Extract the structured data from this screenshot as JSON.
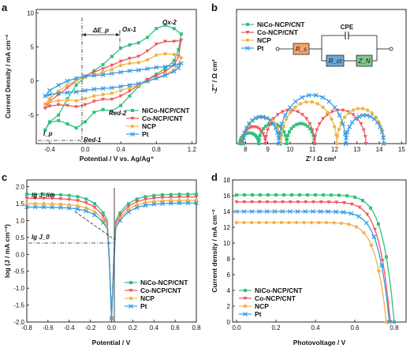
{
  "panels": [
    {
      "label": "a"
    },
    {
      "label": "b"
    },
    {
      "label": "c"
    },
    {
      "label": "d"
    }
  ],
  "colors": {
    "NiCo-NCP/CNT": "#2ec27e",
    "Co-NCP/CNT": "#f0555a",
    "NCP": "#f2b347",
    "Pt": "#2f9be3"
  },
  "legend": [
    "NiCo-NCP/CNT",
    "Co-NCP/CNT",
    "NCP",
    "Pt"
  ],
  "chart_data": [
    {
      "type": "line",
      "panel": "a",
      "xlabel": "Potential / V vs. Ag/Ag⁺",
      "ylabel": "Current Density / mA cm⁻²",
      "xlim": [
        -0.55,
        1.25
      ],
      "ylim": [
        -9.2,
        10.5
      ],
      "xticks": [
        "-0.4",
        "0.0",
        "0.4",
        "0.8",
        "1.2"
      ],
      "yticks": [
        "-5",
        "0",
        "5",
        "10"
      ],
      "annotations": [
        "Ox-1",
        "Ox-2",
        "Red-1",
        "Red-2",
        "ΔE_p",
        "I_p"
      ],
      "legend_position": "bottom-right",
      "series": [
        {
          "name": "NiCo-NCP/CNT",
          "forward": [
            [
              -0.45,
              -7.2
            ],
            [
              -0.4,
              -6.0
            ],
            [
              -0.3,
              -5.0
            ],
            [
              -0.2,
              -2.6
            ],
            [
              -0.1,
              -0.6
            ],
            [
              0.0,
              0.6
            ],
            [
              0.1,
              1.5
            ],
            [
              0.2,
              2.4
            ],
            [
              0.3,
              3.6
            ],
            [
              0.4,
              4.8
            ],
            [
              0.5,
              5.3
            ],
            [
              0.6,
              5.6
            ],
            [
              0.7,
              6.4
            ],
            [
              0.8,
              7.7
            ],
            [
              0.9,
              8.2
            ],
            [
              1.0,
              7.7
            ],
            [
              1.08,
              6.9
            ]
          ],
          "reverse": [
            [
              1.08,
              6.9
            ],
            [
              1.05,
              4.6
            ],
            [
              1.0,
              3.0
            ],
            [
              0.9,
              1.8
            ],
            [
              0.8,
              1.0
            ],
            [
              0.7,
              0.2
            ],
            [
              0.6,
              -0.8
            ],
            [
              0.5,
              -2.2
            ],
            [
              0.4,
              -3.6
            ],
            [
              0.3,
              -4.4
            ],
            [
              0.2,
              -4.2
            ],
            [
              0.1,
              -4.6
            ],
            [
              0.0,
              -6.0
            ],
            [
              -0.1,
              -6.9
            ],
            [
              -0.2,
              -6.3
            ],
            [
              -0.3,
              -5.8
            ],
            [
              -0.4,
              -6.1
            ],
            [
              -0.45,
              -7.2
            ]
          ]
        },
        {
          "name": "Co-NCP/CNT",
          "forward": [
            [
              -0.45,
              -4.0
            ],
            [
              -0.4,
              -3.0
            ],
            [
              -0.3,
              -2.0
            ],
            [
              -0.2,
              -1.0
            ],
            [
              -0.1,
              0.0
            ],
            [
              0.0,
              0.7
            ],
            [
              0.1,
              1.3
            ],
            [
              0.2,
              1.8
            ],
            [
              0.3,
              2.3
            ],
            [
              0.4,
              2.9
            ],
            [
              0.5,
              3.3
            ],
            [
              0.6,
              3.6
            ],
            [
              0.7,
              4.4
            ],
            [
              0.8,
              5.4
            ],
            [
              0.9,
              5.8
            ],
            [
              1.0,
              5.8
            ],
            [
              1.08,
              6.0
            ]
          ],
          "reverse": [
            [
              1.08,
              6.0
            ],
            [
              1.05,
              3.6
            ],
            [
              1.0,
              2.4
            ],
            [
              0.9,
              1.4
            ],
            [
              0.8,
              0.8
            ],
            [
              0.7,
              0.2
            ],
            [
              0.6,
              -0.6
            ],
            [
              0.5,
              -1.5
            ],
            [
              0.4,
              -2.2
            ],
            [
              0.3,
              -2.7
            ],
            [
              0.2,
              -2.7
            ],
            [
              0.1,
              -3.0
            ],
            [
              0.0,
              -3.5
            ],
            [
              -0.1,
              -3.8
            ],
            [
              -0.2,
              -3.6
            ],
            [
              -0.3,
              -3.5
            ],
            [
              -0.4,
              -3.7
            ],
            [
              -0.45,
              -4.0
            ]
          ]
        },
        {
          "name": "NCP",
          "forward": [
            [
              -0.45,
              -3.4
            ],
            [
              -0.4,
              -2.6
            ],
            [
              -0.3,
              -1.5
            ],
            [
              -0.2,
              -0.6
            ],
            [
              -0.1,
              0.1
            ],
            [
              0.0,
              0.6
            ],
            [
              0.1,
              0.9
            ],
            [
              0.2,
              1.3
            ],
            [
              0.3,
              1.7
            ],
            [
              0.4,
              2.3
            ],
            [
              0.5,
              2.6
            ],
            [
              0.6,
              2.7
            ],
            [
              0.7,
              3.1
            ],
            [
              0.8,
              3.8
            ],
            [
              0.9,
              4.0
            ],
            [
              1.0,
              3.9
            ],
            [
              1.08,
              3.4
            ]
          ],
          "reverse": [
            [
              1.08,
              3.4
            ],
            [
              1.05,
              2.4
            ],
            [
              1.0,
              1.6
            ],
            [
              0.9,
              1.0
            ],
            [
              0.8,
              0.4
            ],
            [
              0.7,
              -0.1
            ],
            [
              0.6,
              -0.6
            ],
            [
              0.5,
              -1.0
            ],
            [
              0.4,
              -1.4
            ],
            [
              0.3,
              -1.8
            ],
            [
              0.2,
              -2.0
            ],
            [
              0.1,
              -2.2
            ],
            [
              0.0,
              -2.6
            ],
            [
              -0.1,
              -2.9
            ],
            [
              -0.2,
              -2.8
            ],
            [
              -0.3,
              -2.9
            ],
            [
              -0.4,
              -3.1
            ],
            [
              -0.45,
              -3.4
            ]
          ]
        },
        {
          "name": "Pt",
          "forward": [
            [
              -0.45,
              -2.2
            ],
            [
              -0.4,
              -1.4
            ],
            [
              -0.3,
              -0.6
            ],
            [
              -0.2,
              0.0
            ],
            [
              -0.1,
              0.4
            ],
            [
              0.0,
              0.7
            ],
            [
              0.1,
              0.8
            ],
            [
              0.2,
              0.9
            ],
            [
              0.3,
              1.1
            ],
            [
              0.4,
              1.3
            ],
            [
              0.5,
              1.5
            ],
            [
              0.6,
              1.6
            ],
            [
              0.7,
              1.8
            ],
            [
              0.8,
              2.0
            ],
            [
              0.9,
              2.1
            ],
            [
              1.0,
              2.3
            ],
            [
              1.08,
              2.6
            ]
          ],
          "reverse": [
            [
              1.08,
              2.6
            ],
            [
              1.05,
              1.9
            ],
            [
              1.0,
              1.4
            ],
            [
              0.9,
              0.8
            ],
            [
              0.8,
              0.4
            ],
            [
              0.7,
              0.0
            ],
            [
              0.6,
              -0.4
            ],
            [
              0.5,
              -0.6
            ],
            [
              0.4,
              -0.8
            ],
            [
              0.3,
              -1.0
            ],
            [
              0.2,
              -1.1
            ],
            [
              0.1,
              -1.2
            ],
            [
              0.0,
              -1.4
            ],
            [
              -0.1,
              -1.6
            ],
            [
              -0.2,
              -1.7
            ],
            [
              -0.3,
              -1.8
            ],
            [
              -0.4,
              -2.0
            ],
            [
              -0.45,
              -2.2
            ]
          ]
        }
      ]
    },
    {
      "type": "scatter",
      "panel": "b",
      "xlabel": "Z' / Ω cm²",
      "ylabel": "-Z'' / Ω cm²",
      "xlim": [
        7.6,
        15.2
      ],
      "ylim": [
        0,
        4.0
      ],
      "xticks": [
        "8",
        "9",
        "10",
        "11",
        "12",
        "13",
        "14",
        "15"
      ],
      "circuit_labels": {
        "cpe": "CPE",
        "rs": "R_s",
        "rct": "R_ct",
        "zn": "Z_N"
      },
      "legend_position": "top-left",
      "series": [
        {
          "name": "NiCo-NCP/CNT",
          "arcs": [
            [
              7.75,
              8.6,
              0.32
            ],
            [
              8.6,
              9.85,
              0.6
            ],
            [
              9.85,
              11.1,
              0.6
            ]
          ]
        },
        {
          "name": "Co-NCP/CNT",
          "arcs": [
            [
              7.85,
              8.9,
              0.5
            ],
            [
              8.9,
              11.1,
              1.0
            ],
            [
              11.1,
              13.4,
              1.0
            ]
          ]
        },
        {
          "name": "NCP",
          "arcs": [
            [
              7.9,
              9.6,
              0.8
            ],
            [
              9.6,
              12.1,
              1.25
            ],
            [
              12.1,
              14.2,
              1.05
            ]
          ]
        },
        {
          "name": "Pt",
          "arcs": [
            [
              7.9,
              9.5,
              0.8
            ],
            [
              9.5,
              12.5,
              1.45
            ],
            [
              12.5,
              14.2,
              0.85
            ]
          ]
        }
      ]
    },
    {
      "type": "line",
      "panel": "c",
      "xlabel": "Potential / V",
      "ylabel": "log (J / mA cm⁻²)",
      "xlim": [
        -0.8,
        0.8
      ],
      "ylim": [
        -2.0,
        2.2
      ],
      "xticks": [
        "-0.8",
        "-0.6",
        "-0.4",
        "-0.2",
        "0.0",
        "0.2",
        "0.4",
        "0.6",
        "0.8"
      ],
      "yticks": [
        "-2.0",
        "-1.5",
        "-1.0",
        "-0.5",
        "0.0",
        "0.5",
        "1.0",
        "1.5",
        "2.0"
      ],
      "annotations": [
        "lg J_lim",
        "lg J_0"
      ],
      "legend_position": "bottom-right",
      "series": [
        {
          "name": "NiCo-NCP/CNT",
          "limit_left": 1.78,
          "limit_right": 1.78,
          "log_j0": 0.7,
          "x_min": -0.8,
          "x_max": 0.8
        },
        {
          "name": "Co-NCP/CNT",
          "limit_left": 1.66,
          "limit_right": 1.7,
          "log_j0": 0.62,
          "x_min": -0.8,
          "x_max": 0.8
        },
        {
          "name": "NCP",
          "limit_left": 1.5,
          "limit_right": 1.6,
          "log_j0": 0.55,
          "x_min": -0.8,
          "x_max": 0.8
        },
        {
          "name": "Pt",
          "limit_left": 1.4,
          "limit_right": 1.52,
          "log_j0": 0.5,
          "x_min": -0.8,
          "x_max": 0.8
        }
      ]
    },
    {
      "type": "line",
      "panel": "d",
      "xlabel": "Photovoltage / V",
      "ylabel": "Current density / mA cm⁻²",
      "xlim": [
        -0.02,
        0.86
      ],
      "ylim": [
        0,
        18
      ],
      "xticks": [
        "0.0",
        "0.2",
        "0.4",
        "0.6",
        "0.8"
      ],
      "yticks": [
        "0",
        "2",
        "4",
        "6",
        "8",
        "10",
        "12",
        "14",
        "16",
        "18"
      ],
      "legend_position": "bottom-left",
      "series": [
        {
          "name": "NiCo-NCP/CNT",
          "jsc": 16.1,
          "voc": 0.8
        },
        {
          "name": "Co-NCP/CNT",
          "jsc": 15.2,
          "voc": 0.78
        },
        {
          "name": "NCP",
          "jsc": 12.6,
          "voc": 0.76
        },
        {
          "name": "Pt",
          "jsc": 14.0,
          "voc": 0.775
        }
      ]
    }
  ]
}
